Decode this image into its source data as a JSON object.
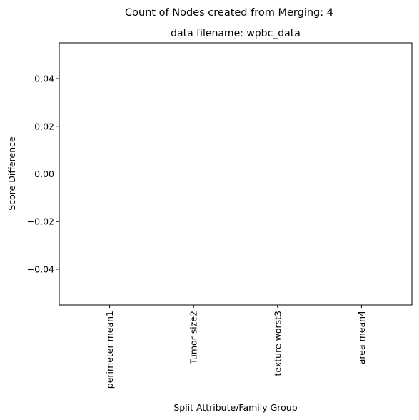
{
  "chart_data": {
    "type": "bar",
    "suptitle": "Count of Nodes created from Merging: 4",
    "title": "data filename: wpbc_data",
    "xlabel": "Split Attribute/Family Group",
    "ylabel": "Score Difference",
    "categories": [
      "perimeter mean1",
      "Tumor size2",
      "texture worst3",
      "area mean4"
    ],
    "values": [
      0,
      0,
      0,
      0
    ],
    "ylim": [
      -0.055,
      0.055
    ],
    "yticks": [
      -0.04,
      -0.02,
      0.0,
      0.02,
      0.04
    ],
    "ytick_labels": [
      "−0.04",
      "−0.02",
      "0.00",
      "0.02",
      "0.04"
    ],
    "grid": false,
    "legend": "none"
  }
}
